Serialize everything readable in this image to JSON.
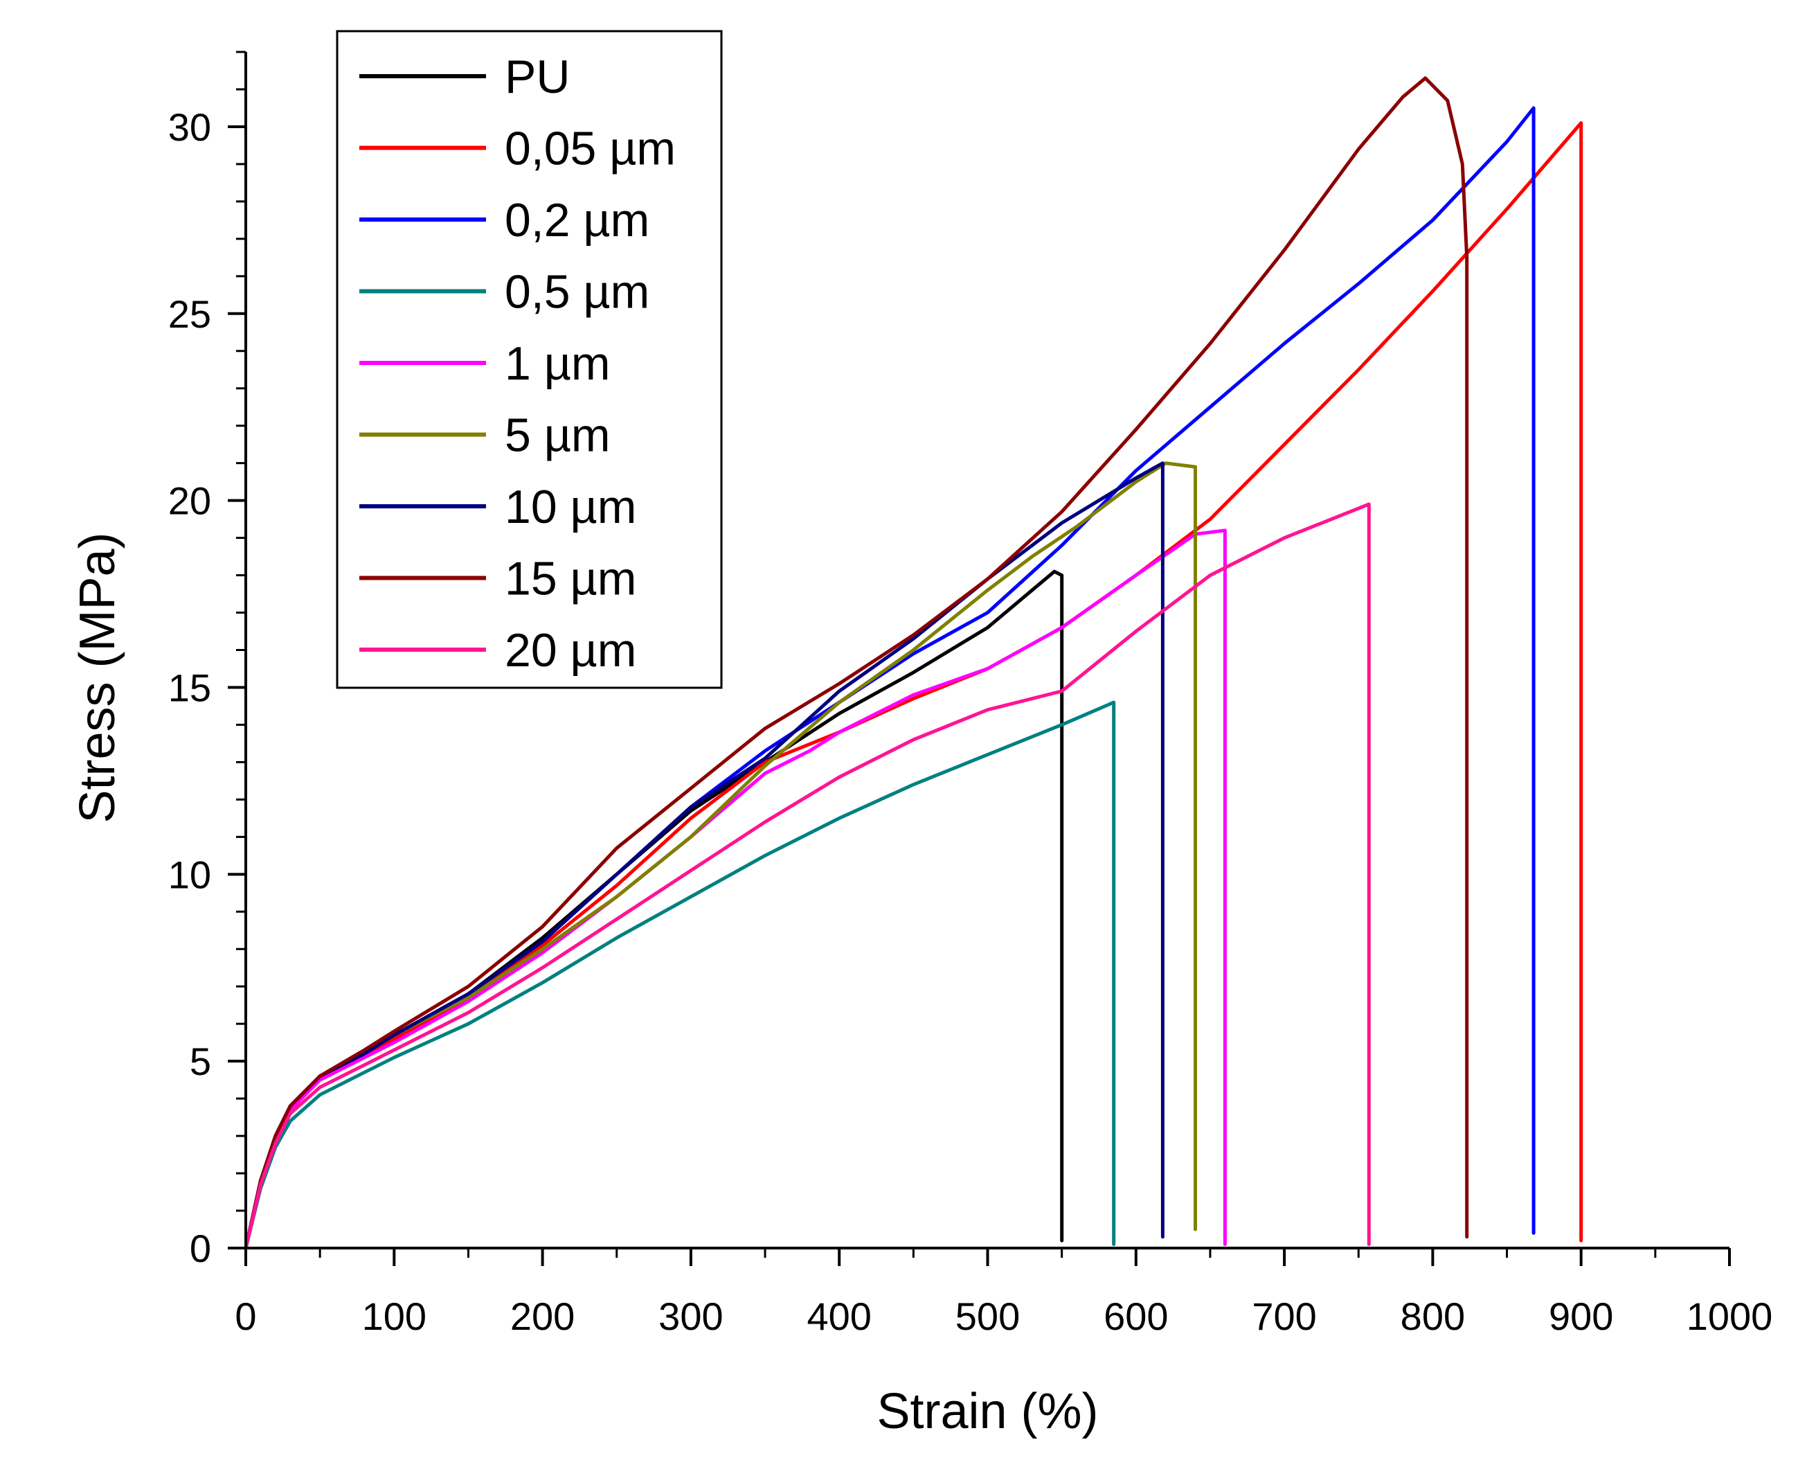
{
  "chart_data": {
    "type": "line",
    "title": "",
    "xlabel": "Strain (%)",
    "ylabel": "Stress (MPa)",
    "xlim": [
      0,
      1000
    ],
    "ylim": [
      0,
      32
    ],
    "x_ticks": [
      0,
      100,
      200,
      300,
      400,
      500,
      600,
      700,
      800,
      900,
      1000
    ],
    "y_ticks": [
      0,
      5,
      10,
      15,
      20,
      25,
      30
    ],
    "grid": false,
    "legend_position": "top-left",
    "series": [
      {
        "name": "PU",
        "color": "#000000",
        "x": [
          0,
          10,
          20,
          30,
          50,
          80,
          100,
          150,
          200,
          250,
          300,
          350,
          400,
          450,
          500,
          530,
          545,
          550,
          550,
          550
        ],
        "y": [
          0,
          1.8,
          3.0,
          3.8,
          4.6,
          5.2,
          5.7,
          6.8,
          8.3,
          10.0,
          11.7,
          13.0,
          14.3,
          15.4,
          16.6,
          17.6,
          18.1,
          18.0,
          13.5,
          0.2
        ]
      },
      {
        "name": "0,05 µm",
        "color": "#ff0000",
        "x": [
          0,
          10,
          20,
          30,
          50,
          80,
          100,
          150,
          200,
          250,
          300,
          350,
          400,
          450,
          500,
          550,
          600,
          650,
          700,
          750,
          800,
          850,
          900,
          900
        ],
        "y": [
          0,
          1.7,
          2.9,
          3.7,
          4.5,
          5.1,
          5.6,
          6.7,
          8.1,
          9.7,
          11.5,
          13.0,
          13.8,
          14.7,
          15.5,
          16.6,
          18.0,
          19.5,
          21.5,
          23.5,
          25.6,
          27.8,
          30.1,
          0.2
        ]
      },
      {
        "name": "0,2 µm",
        "color": "#0000ff",
        "x": [
          0,
          10,
          20,
          30,
          50,
          80,
          100,
          150,
          200,
          250,
          300,
          350,
          400,
          450,
          500,
          550,
          600,
          650,
          700,
          750,
          800,
          850,
          868,
          868
        ],
        "y": [
          0,
          1.8,
          3.0,
          3.8,
          4.6,
          5.2,
          5.7,
          6.8,
          8.2,
          10.0,
          11.8,
          13.3,
          14.6,
          15.9,
          17.0,
          18.8,
          20.8,
          22.5,
          24.2,
          25.8,
          27.5,
          29.6,
          30.5,
          0.4
        ]
      },
      {
        "name": "0,5 µm",
        "color": "#008080",
        "x": [
          0,
          10,
          20,
          30,
          50,
          80,
          100,
          150,
          200,
          250,
          300,
          350,
          400,
          450,
          500,
          550,
          585,
          585
        ],
        "y": [
          0,
          1.6,
          2.7,
          3.4,
          4.1,
          4.7,
          5.1,
          6.0,
          7.1,
          8.3,
          9.4,
          10.5,
          11.5,
          12.4,
          13.2,
          14.0,
          14.6,
          0.1
        ]
      },
      {
        "name": "1 µm",
        "color": "#ff00ff",
        "x": [
          0,
          10,
          20,
          30,
          50,
          80,
          100,
          150,
          200,
          250,
          300,
          350,
          380,
          400,
          450,
          500,
          550,
          600,
          640,
          660,
          660
        ],
        "y": [
          0,
          1.7,
          2.9,
          3.7,
          4.5,
          5.1,
          5.5,
          6.6,
          7.9,
          9.4,
          11.0,
          12.7,
          13.3,
          13.8,
          14.8,
          15.5,
          16.6,
          18.0,
          19.1,
          19.2,
          0.1
        ]
      },
      {
        "name": "5 µm",
        "color": "#808000",
        "x": [
          0,
          10,
          20,
          30,
          50,
          80,
          100,
          150,
          200,
          250,
          300,
          350,
          400,
          450,
          500,
          530,
          560,
          600,
          620,
          640,
          640
        ],
        "y": [
          0,
          1.8,
          3.0,
          3.8,
          4.6,
          5.2,
          5.7,
          6.7,
          8.0,
          9.4,
          11.0,
          12.9,
          14.6,
          16.0,
          17.6,
          18.5,
          19.3,
          20.5,
          21.0,
          20.9,
          0.5
        ]
      },
      {
        "name": "10 µm",
        "color": "#000080",
        "x": [
          0,
          10,
          20,
          30,
          50,
          80,
          100,
          150,
          200,
          250,
          300,
          350,
          400,
          450,
          500,
          550,
          600,
          618,
          618
        ],
        "y": [
          0,
          1.8,
          3.0,
          3.8,
          4.6,
          5.2,
          5.7,
          6.8,
          8.2,
          10.0,
          11.8,
          13.1,
          14.9,
          16.3,
          17.9,
          19.4,
          20.6,
          21.0,
          0.3
        ]
      },
      {
        "name": "15 µm",
        "color": "#8b0000",
        "x": [
          0,
          10,
          20,
          30,
          50,
          80,
          100,
          150,
          200,
          250,
          300,
          350,
          400,
          450,
          500,
          550,
          600,
          650,
          700,
          750,
          780,
          795,
          810,
          820,
          823,
          823
        ],
        "y": [
          0,
          1.8,
          3.0,
          3.8,
          4.6,
          5.3,
          5.8,
          7.0,
          8.6,
          10.7,
          12.3,
          13.9,
          15.1,
          16.4,
          17.9,
          19.7,
          21.9,
          24.2,
          26.7,
          29.4,
          30.8,
          31.3,
          30.7,
          29.0,
          26.5,
          0.3
        ]
      },
      {
        "name": "20 µm",
        "color": "#ff1493",
        "x": [
          0,
          10,
          20,
          30,
          50,
          80,
          100,
          150,
          200,
          250,
          300,
          350,
          400,
          450,
          500,
          550,
          600,
          650,
          700,
          757,
          757
        ],
        "y": [
          0,
          1.7,
          2.8,
          3.6,
          4.3,
          4.9,
          5.3,
          6.3,
          7.5,
          8.8,
          10.1,
          11.4,
          12.6,
          13.6,
          14.4,
          14.9,
          16.5,
          18.0,
          19.0,
          19.9,
          0.1
        ]
      }
    ]
  }
}
